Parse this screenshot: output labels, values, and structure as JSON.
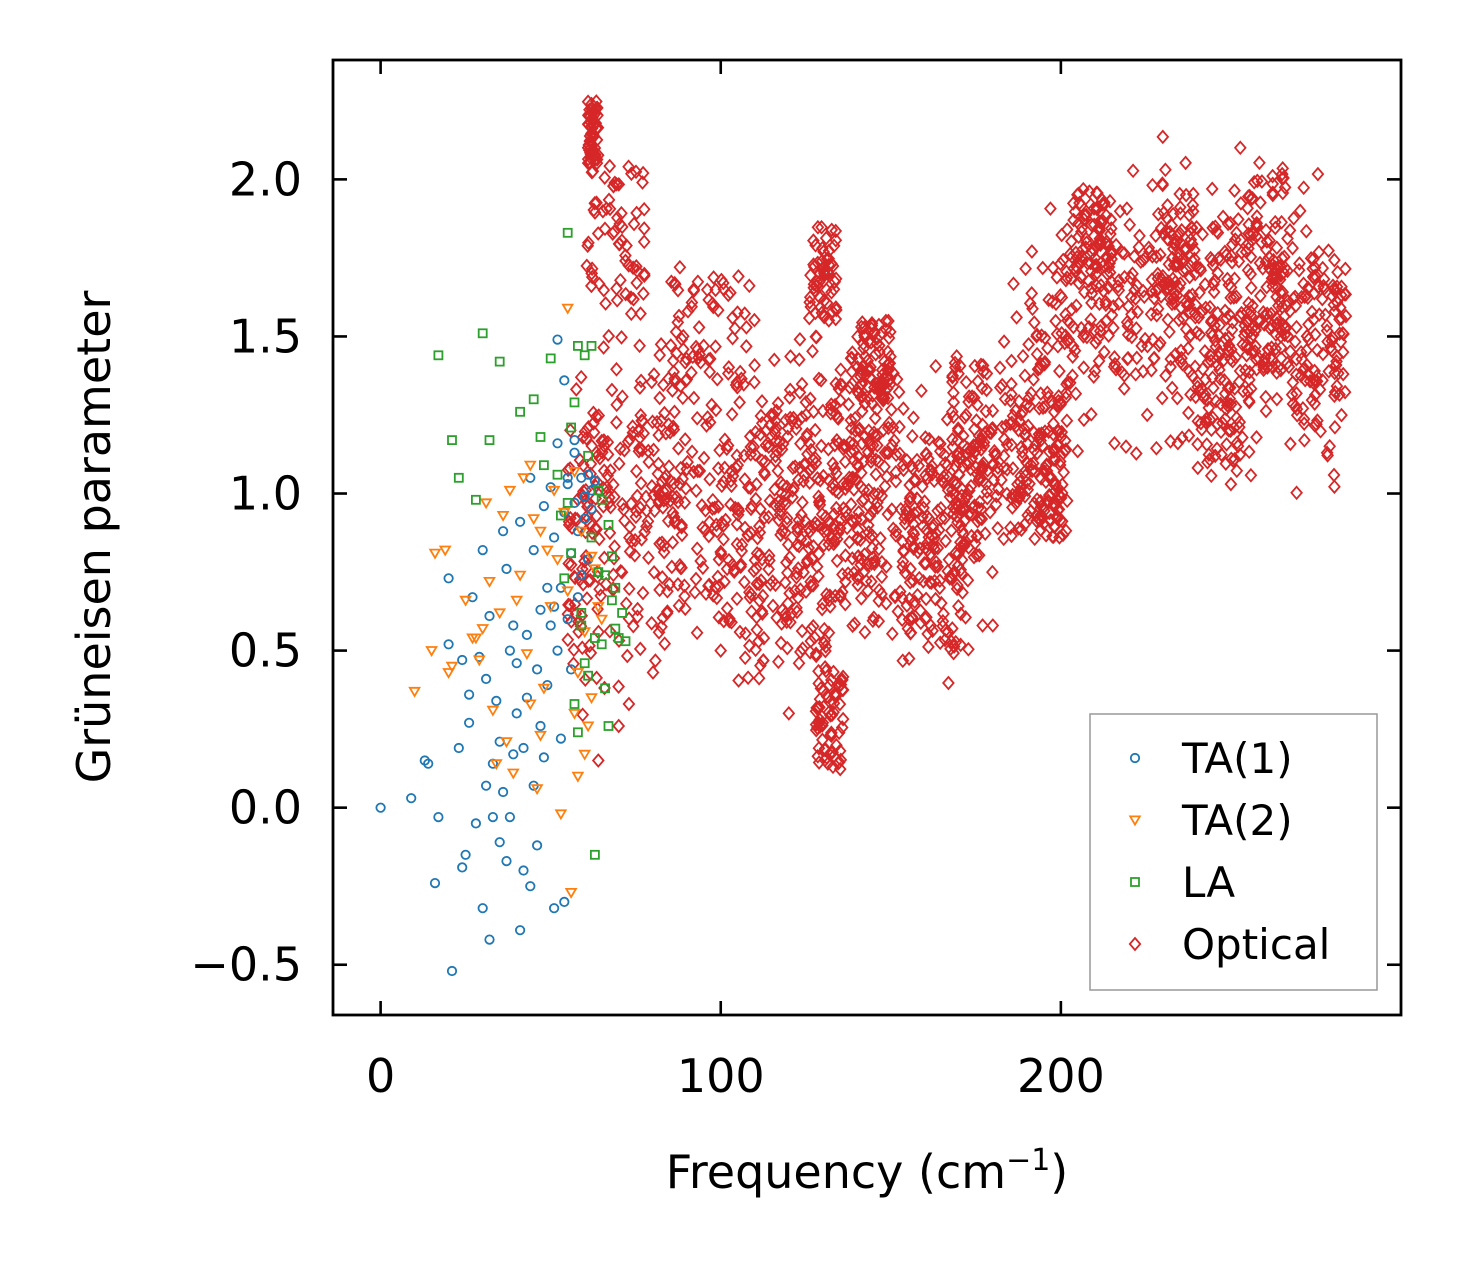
{
  "chart_data": {
    "type": "scatter",
    "title": "",
    "xlabel": "Frequency (cm",
    "xlabel_sup": "−1",
    "xlabel_close": ")",
    "ylabel": "Grüneisen parameter",
    "xlim": [
      -14,
      300
    ],
    "ylim": [
      -0.66,
      2.38
    ],
    "xticks": [
      0,
      100,
      200
    ],
    "xtick_labels": [
      "0",
      "100",
      "200"
    ],
    "yticks": [
      -0.5,
      0.0,
      0.5,
      1.0,
      1.5,
      2.0
    ],
    "ytick_labels": [
      "−0.5",
      "0.0",
      "0.5",
      "1.0",
      "1.5",
      "2.0"
    ],
    "legend_position": "bottom-right",
    "series": [
      {
        "name": "TA(1)",
        "color": "#1f77b4",
        "marker": "circle",
        "x": [
          0,
          9,
          13,
          14,
          16,
          17,
          20,
          20,
          21,
          23,
          24,
          24,
          25,
          26,
          26,
          27,
          28,
          29,
          30,
          30,
          31,
          31,
          32,
          32,
          33,
          33,
          34,
          35,
          35,
          36,
          36,
          37,
          37,
          38,
          38,
          39,
          39,
          40,
          40,
          41,
          41,
          42,
          42,
          43,
          43,
          44,
          44,
          45,
          45,
          46,
          46,
          47,
          47,
          48,
          48,
          49,
          49,
          50,
          50,
          51,
          51,
          52,
          52,
          53,
          53,
          54,
          54,
          55,
          55,
          56,
          56,
          57,
          57,
          58,
          58,
          59,
          59,
          60,
          60,
          61,
          61,
          62,
          62,
          63,
          52,
          54,
          57,
          51,
          55
        ],
        "y": [
          0.0,
          0.03,
          0.15,
          0.14,
          -0.24,
          -0.03,
          0.73,
          0.52,
          -0.52,
          0.19,
          -0.19,
          0.47,
          -0.15,
          0.27,
          0.36,
          0.67,
          -0.05,
          0.48,
          -0.32,
          0.82,
          0.07,
          0.41,
          -0.42,
          0.61,
          0.14,
          -0.03,
          0.34,
          0.21,
          -0.11,
          0.88,
          0.05,
          -0.17,
          0.76,
          0.5,
          -0.03,
          0.58,
          0.17,
          0.46,
          0.3,
          -0.39,
          0.91,
          0.19,
          -0.2,
          0.55,
          0.35,
          -0.25,
          1.05,
          0.07,
          0.82,
          0.44,
          -0.12,
          0.63,
          0.26,
          0.96,
          0.16,
          0.7,
          0.39,
          1.02,
          0.58,
          -0.32,
          0.86,
          0.5,
          1.16,
          0.7,
          0.22,
          1.36,
          0.94,
          0.6,
          1.05,
          0.81,
          0.44,
          0.97,
          1.13,
          0.67,
          0.88,
          1.05,
          0.74,
          0.99,
          0.92,
          1.06,
          0.79,
          1.01,
          0.95,
          1.04,
          1.49,
          -0.3,
          1.17,
          0.64,
          1.03
        ]
      },
      {
        "name": "TA(2)",
        "color": "#ff7f0e",
        "marker": "triangle-down",
        "x": [
          10,
          15,
          16,
          19,
          20,
          21,
          25,
          27,
          28,
          29,
          30,
          31,
          32,
          33,
          34,
          35,
          36,
          37,
          38,
          39,
          40,
          41,
          42,
          43,
          44,
          45,
          46,
          47,
          48,
          49,
          50,
          51,
          52,
          53,
          54,
          55,
          56,
          57,
          58,
          59,
          60,
          61,
          62,
          63,
          64,
          65,
          55,
          57,
          58,
          60,
          62,
          44,
          47
        ],
        "y": [
          0.37,
          0.5,
          0.81,
          0.82,
          0.43,
          0.45,
          0.66,
          0.54,
          0.54,
          0.47,
          0.57,
          0.97,
          0.72,
          0.31,
          0.14,
          0.62,
          0.93,
          0.21,
          1.01,
          0.11,
          0.66,
          0.74,
          1.05,
          0.49,
          0.33,
          0.92,
          0.06,
          0.88,
          0.38,
          0.82,
          0.64,
          1.01,
          0.79,
          -0.02,
          0.94,
          0.69,
          -0.27,
          1.07,
          0.43,
          0.88,
          0.56,
          0.26,
          0.8,
          0.76,
          0.64,
          0.6,
          1.59,
          0.3,
          0.1,
          0.17,
          0.35,
          1.09,
          0.23
        ]
      },
      {
        "name": "LA",
        "color": "#2ca02c",
        "marker": "square",
        "x": [
          17,
          21,
          23,
          28,
          30,
          32,
          35,
          41,
          45,
          47,
          48,
          50,
          52,
          53,
          55,
          56,
          57,
          58,
          59,
          60,
          61,
          62,
          62,
          63,
          64,
          64,
          65,
          65,
          66,
          66,
          67,
          67,
          68,
          68,
          69,
          69,
          70,
          71,
          72,
          63,
          60,
          58,
          57,
          56,
          55,
          54,
          59,
          61
        ],
        "y": [
          1.44,
          1.17,
          1.05,
          0.98,
          1.51,
          1.17,
          1.42,
          1.26,
          1.3,
          1.18,
          1.09,
          1.43,
          1.06,
          0.93,
          1.83,
          1.21,
          1.29,
          1.47,
          0.62,
          1.44,
          1.12,
          0.86,
          1.47,
          0.54,
          0.75,
          1.01,
          0.52,
          0.98,
          0.38,
          0.74,
          0.26,
          0.9,
          0.66,
          0.8,
          0.57,
          0.7,
          0.54,
          0.62,
          0.53,
          -0.15,
          0.46,
          0.24,
          0.33,
          0.81,
          0.97,
          0.73,
          0.58,
          0.42
        ]
      },
      {
        "name": "Optical",
        "color": "#d62728",
        "marker": "diamond",
        "bands": [
          [
            55,
            85,
            0.38,
            1.5
          ],
          [
            60,
            78,
            1.55,
            2.05
          ],
          [
            61,
            64,
            2.05,
            2.25
          ],
          [
            75,
            120,
            0.5,
            1.45
          ],
          [
            85,
            110,
            1.3,
            1.7
          ],
          [
            110,
            128,
            0.45,
            1.3
          ],
          [
            120,
            140,
            0.48,
            1.5
          ],
          [
            126,
            134,
            1.55,
            1.85
          ],
          [
            128,
            136,
            0.12,
            0.45
          ],
          [
            136,
            158,
            0.55,
            1.35
          ],
          [
            140,
            150,
            1.3,
            1.55
          ],
          [
            150,
            172,
            0.45,
            1.0
          ],
          [
            160,
            178,
            0.8,
            1.18
          ],
          [
            168,
            185,
            0.98,
            1.45
          ],
          [
            185,
            200,
            0.85,
            1.3
          ],
          [
            192,
            202,
            0.86,
            1.2
          ],
          [
            200,
            240,
            1.35,
            1.8
          ],
          [
            205,
            215,
            1.7,
            1.98
          ],
          [
            228,
            240,
            1.55,
            1.93
          ],
          [
            240,
            256,
            1.05,
            1.55
          ],
          [
            244,
            258,
            1.45,
            1.97
          ],
          [
            255,
            266,
            1.4,
            2.04
          ],
          [
            262,
            284,
            1.3,
            1.75
          ]
        ],
        "curve_x": [
          55,
          60,
          65,
          70,
          80,
          90,
          100,
          110,
          120,
          130,
          140,
          150,
          160,
          170,
          180,
          190,
          200,
          210,
          220,
          230,
          240,
          250,
          260,
          270,
          280
        ],
        "curve_y": [
          0.7,
          0.85,
          0.95,
          1.0,
          1.02,
          0.98,
          0.92,
          0.88,
          0.95,
          1.0,
          1.05,
          1.02,
          0.85,
          0.95,
          1.1,
          1.2,
          1.55,
          1.6,
          1.6,
          1.65,
          1.55,
          1.5,
          1.6,
          1.55,
          1.5
        ],
        "outliers": [
          [
            62,
            2.24
          ],
          [
            63,
            2.1
          ],
          [
            77,
            1.99
          ],
          [
            88,
            1.72
          ],
          [
            95,
            1.47
          ],
          [
            100,
            0.5
          ],
          [
            120,
            0.3
          ],
          [
            123,
            0.46
          ],
          [
            133,
            0.13
          ],
          [
            132,
            0.17
          ],
          [
            130,
            0.27
          ],
          [
            177,
            0.58
          ],
          [
            180,
            0.58
          ],
          [
            250,
            1.03
          ],
          [
            283,
            1.38
          ],
          [
            70,
            0.26
          ],
          [
            73,
            0.33
          ],
          [
            64,
            0.15
          ]
        ],
        "n_points": 2600
      }
    ]
  }
}
